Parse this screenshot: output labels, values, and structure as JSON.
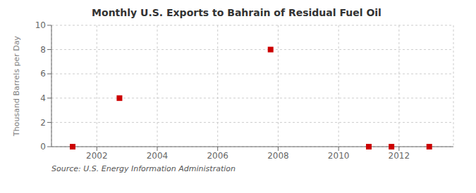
{
  "chart_data": {
    "type": "scatter",
    "title": "Monthly U.S. Exports to Bahrain of Residual Fuel Oil",
    "ylabel": "Thousand Barrels per Day",
    "source": "Source: U.S. Energy Information Administration",
    "x": [
      2001.2,
      2002.75,
      2007.75,
      2011.0,
      2011.75,
      2013.0
    ],
    "values": [
      0.0,
      4.0,
      8.0,
      0.0,
      0.0,
      0.0
    ],
    "color": "#cc0000",
    "marker": "square",
    "xlim": [
      2000.5,
      2013.8
    ],
    "ylim": [
      0,
      10
    ],
    "xticks": [
      2002,
      2004,
      2006,
      2008,
      2010,
      2012
    ],
    "yticks": [
      0,
      2,
      4,
      6,
      8,
      10
    ],
    "grid": true
  }
}
